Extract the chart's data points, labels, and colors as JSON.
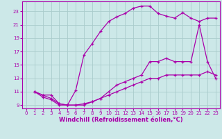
{
  "background_color": "#cce8e8",
  "grid_color": "#aacccc",
  "line_color": "#aa00aa",
  "marker": "+",
  "xlabel": "Windchill (Refroidissement éolien,°C)",
  "xlabel_fontsize": 6,
  "xtick_fontsize": 5,
  "ytick_fontsize": 5,
  "xlim": [
    -0.5,
    23.5
  ],
  "ylim": [
    8.5,
    24.5
  ],
  "yticks": [
    9,
    11,
    13,
    15,
    17,
    19,
    21,
    23
  ],
  "xticks": [
    0,
    1,
    2,
    3,
    4,
    5,
    6,
    7,
    8,
    9,
    10,
    11,
    12,
    13,
    14,
    15,
    16,
    17,
    18,
    19,
    20,
    21,
    22,
    23
  ],
  "curve2_x": [
    1,
    2,
    3,
    4,
    5,
    6,
    7,
    8,
    9,
    10,
    11,
    12,
    13,
    14,
    15,
    16,
    17,
    18,
    19,
    20,
    21,
    22,
    23
  ],
  "curve2_y": [
    11.0,
    10.5,
    10.5,
    9.2,
    9.0,
    11.2,
    16.5,
    18.2,
    20.0,
    21.5,
    22.2,
    22.7,
    23.5,
    23.8,
    23.8,
    22.7,
    22.3,
    22.0,
    22.8,
    22.0,
    21.5,
    22.0,
    22.0
  ],
  "curve1_x": [
    1,
    2,
    3,
    4,
    5,
    6,
    7,
    8,
    9,
    10,
    11,
    12,
    13,
    14,
    15,
    16,
    17,
    18,
    19,
    20,
    21,
    22,
    23
  ],
  "curve1_y": [
    11.0,
    10.5,
    10.0,
    9.2,
    9.0,
    9.0,
    9.0,
    9.5,
    10.0,
    11.0,
    12.0,
    12.5,
    13.0,
    13.5,
    15.5,
    15.5,
    16.0,
    15.5,
    15.5,
    15.5,
    21.0,
    15.5,
    13.0
  ],
  "curve3_x": [
    1,
    2,
    3,
    4,
    5,
    6,
    7,
    8,
    9,
    10,
    11,
    12,
    13,
    14,
    15,
    16,
    17,
    18,
    19,
    20,
    21,
    22,
    23
  ],
  "curve3_y": [
    11.0,
    10.2,
    9.8,
    9.0,
    9.0,
    9.0,
    9.2,
    9.5,
    10.0,
    10.5,
    11.0,
    11.5,
    12.0,
    12.5,
    13.0,
    13.0,
    13.5,
    13.5,
    13.5,
    13.5,
    13.5,
    14.0,
    13.5
  ]
}
